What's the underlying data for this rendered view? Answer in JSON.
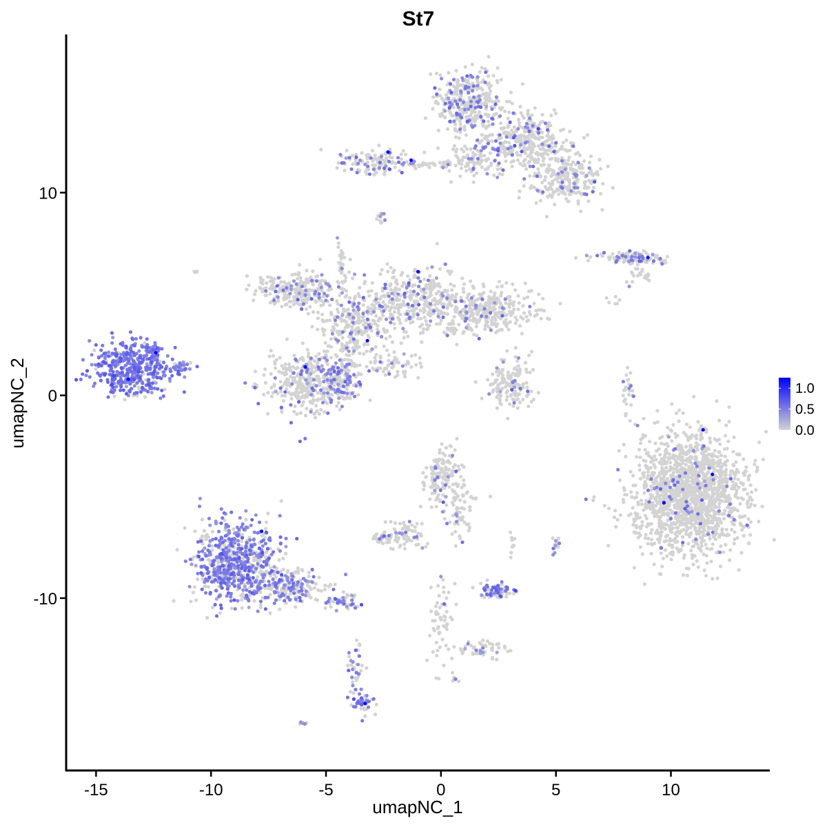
{
  "chart_data": {
    "type": "scatter",
    "title": "St7",
    "xlabel": "umapNC_1",
    "ylabel": "umapNC_2",
    "xlim": [
      -16.3,
      14.3
    ],
    "ylim": [
      -18.5,
      17.8
    ],
    "x_ticks": [
      -15,
      -10,
      -5,
      0,
      5,
      10
    ],
    "y_ticks": [
      -10,
      0,
      10
    ],
    "tick_labels_x": [
      "-15",
      "-10",
      "-5",
      "0",
      "5",
      "10"
    ],
    "tick_labels_y": [
      "-10",
      "0",
      "10"
    ],
    "grid": false,
    "legend": {
      "placement": "right",
      "type": "colorbar",
      "range": [
        0,
        1.25
      ],
      "ticks": [
        0.0,
        0.5,
        1.0
      ],
      "tick_labels": [
        "0.0",
        "0.5",
        "1.0"
      ],
      "low_color": "#d3d3d3",
      "high_color": "#0000ff"
    },
    "clusters": [
      {
        "center": [
          -13.5,
          1.3
        ],
        "spread": [
          1.1,
          0.9
        ],
        "n": 420,
        "expr_frac": 0.85,
        "expr_mean": 0.55
      },
      {
        "center": [
          -12.6,
          2.3
        ],
        "spread": [
          0.3,
          0.2
        ],
        "n": 25,
        "expr_frac": 0.8,
        "expr_mean": 0.5
      },
      {
        "center": [
          -11.3,
          1.4
        ],
        "spread": [
          0.5,
          0.15
        ],
        "n": 30,
        "expr_frac": 0.6,
        "expr_mean": 0.45
      },
      {
        "center": [
          -9.0,
          -8.2
        ],
        "spread": [
          1.2,
          1.4
        ],
        "n": 700,
        "expr_frac": 0.6,
        "expr_mean": 0.5
      },
      {
        "center": [
          -6.5,
          -9.4
        ],
        "spread": [
          1.0,
          0.5
        ],
        "n": 220,
        "expr_frac": 0.35,
        "expr_mean": 0.45
      },
      {
        "center": [
          -4.3,
          -10.2
        ],
        "spread": [
          0.5,
          0.3
        ],
        "n": 50,
        "expr_frac": 0.45,
        "expr_mean": 0.45
      },
      {
        "center": [
          -3.7,
          -13.5
        ],
        "spread": [
          0.25,
          1.0
        ],
        "n": 40,
        "expr_frac": 0.35,
        "expr_mean": 0.45
      },
      {
        "center": [
          -3.4,
          -15.2
        ],
        "spread": [
          0.3,
          0.35
        ],
        "n": 45,
        "expr_frac": 0.5,
        "expr_mean": 0.5
      },
      {
        "center": [
          -6.0,
          -16.2
        ],
        "spread": [
          0.1,
          0.08
        ],
        "n": 8,
        "expr_frac": 0.7,
        "expr_mean": 0.4
      },
      {
        "center": [
          -6.3,
          5.2
        ],
        "spread": [
          1.2,
          0.6
        ],
        "n": 260,
        "expr_frac": 0.1,
        "expr_mean": 0.45
      },
      {
        "center": [
          -3.8,
          3.5
        ],
        "spread": [
          1.0,
          1.2
        ],
        "n": 280,
        "expr_frac": 0.15,
        "expr_mean": 0.45
      },
      {
        "center": [
          -5.8,
          0.6
        ],
        "spread": [
          1.2,
          1.0
        ],
        "n": 380,
        "expr_frac": 0.12,
        "expr_mean": 0.45
      },
      {
        "center": [
          -4.3,
          0.8
        ],
        "spread": [
          0.6,
          0.7
        ],
        "n": 140,
        "expr_frac": 0.3,
        "expr_mean": 0.5
      },
      {
        "center": [
          -1.3,
          4.6
        ],
        "spread": [
          1.2,
          1.1
        ],
        "n": 320,
        "expr_frac": 0.12,
        "expr_mean": 0.45
      },
      {
        "center": [
          1.8,
          4.2
        ],
        "spread": [
          1.6,
          0.8
        ],
        "n": 380,
        "expr_frac": 0.08,
        "expr_mean": 0.45
      },
      {
        "center": [
          -2.0,
          1.5
        ],
        "spread": [
          0.8,
          0.5
        ],
        "n": 60,
        "expr_frac": 0.15,
        "expr_mean": 0.45
      },
      {
        "center": [
          -4.3,
          6.5
        ],
        "spread": [
          0.15,
          0.8
        ],
        "n": 30,
        "expr_frac": 0.1,
        "expr_mean": 0.4
      },
      {
        "center": [
          1.2,
          14.5
        ],
        "spread": [
          1.0,
          1.0
        ],
        "n": 380,
        "expr_frac": 0.2,
        "expr_mean": 0.5
      },
      {
        "center": [
          3.6,
          12.5
        ],
        "spread": [
          1.2,
          0.9
        ],
        "n": 330,
        "expr_frac": 0.15,
        "expr_mean": 0.5
      },
      {
        "center": [
          5.4,
          10.7
        ],
        "spread": [
          1.0,
          0.8
        ],
        "n": 250,
        "expr_frac": 0.12,
        "expr_mean": 0.45
      },
      {
        "center": [
          1.4,
          11.7
        ],
        "spread": [
          0.8,
          0.6
        ],
        "n": 90,
        "expr_frac": 0.15,
        "expr_mean": 0.45
      },
      {
        "center": [
          -2.9,
          11.5
        ],
        "spread": [
          0.9,
          0.4
        ],
        "n": 120,
        "expr_frac": 0.15,
        "expr_mean": 0.5
      },
      {
        "center": [
          -0.6,
          11.4
        ],
        "spread": [
          0.8,
          0.12
        ],
        "n": 40,
        "expr_frac": 0.15,
        "expr_mean": 0.45
      },
      {
        "center": [
          -2.6,
          8.8
        ],
        "spread": [
          0.12,
          0.25
        ],
        "n": 12,
        "expr_frac": 0.2,
        "expr_mean": 0.4
      },
      {
        "center": [
          8.3,
          6.8
        ],
        "spread": [
          1.0,
          0.2
        ],
        "n": 110,
        "expr_frac": 0.3,
        "expr_mean": 0.5
      },
      {
        "center": [
          8.7,
          5.9
        ],
        "spread": [
          0.4,
          0.3
        ],
        "n": 20,
        "expr_frac": 0.05,
        "expr_mean": 0.4
      },
      {
        "center": [
          3.0,
          0.6
        ],
        "spread": [
          0.7,
          0.8
        ],
        "n": 150,
        "expr_frac": 0.08,
        "expr_mean": 0.45
      },
      {
        "center": [
          8.1,
          0.3
        ],
        "spread": [
          0.2,
          0.7
        ],
        "n": 25,
        "expr_frac": 0.35,
        "expr_mean": 0.45
      },
      {
        "center": [
          10.8,
          -4.9
        ],
        "spread": [
          1.6,
          2.0
        ],
        "n": 1600,
        "expr_frac": 0.04,
        "expr_mean": 0.5
      },
      {
        "center": [
          0.0,
          -4.2
        ],
        "spread": [
          0.6,
          1.0
        ],
        "n": 150,
        "expr_frac": 0.1,
        "expr_mean": 0.45
      },
      {
        "center": [
          -1.6,
          -6.9
        ],
        "spread": [
          0.6,
          0.6
        ],
        "n": 70,
        "expr_frac": 0.12,
        "expr_mean": 0.45
      },
      {
        "center": [
          -2.5,
          -7.0
        ],
        "spread": [
          0.3,
          0.15
        ],
        "n": 35,
        "expr_frac": 0.2,
        "expr_mean": 0.45
      },
      {
        "center": [
          0.8,
          -5.8
        ],
        "spread": [
          0.3,
          0.8
        ],
        "n": 50,
        "expr_frac": 0.1,
        "expr_mean": 0.45
      },
      {
        "center": [
          2.4,
          -9.6
        ],
        "spread": [
          0.45,
          0.25
        ],
        "n": 90,
        "expr_frac": 0.45,
        "expr_mean": 0.5
      },
      {
        "center": [
          0.0,
          -11.4
        ],
        "spread": [
          0.4,
          1.3
        ],
        "n": 60,
        "expr_frac": 0.08,
        "expr_mean": 0.45
      },
      {
        "center": [
          1.8,
          -12.5
        ],
        "spread": [
          0.8,
          0.3
        ],
        "n": 50,
        "expr_frac": 0.15,
        "expr_mean": 0.45
      },
      {
        "center": [
          5.0,
          -7.4
        ],
        "spread": [
          0.15,
          0.3
        ],
        "n": 15,
        "expr_frac": 0.3,
        "expr_mean": 0.45
      },
      {
        "center": [
          3.1,
          -7.4
        ],
        "spread": [
          0.1,
          0.5
        ],
        "n": 10,
        "expr_frac": 0.1,
        "expr_mean": 0.4
      },
      {
        "center": [
          0.6,
          -14.0
        ],
        "spread": [
          0.08,
          0.08
        ],
        "n": 6,
        "expr_frac": 0.3,
        "expr_mean": 0.4
      },
      {
        "center": [
          -10.7,
          6.1
        ],
        "spread": [
          0.08,
          0.08
        ],
        "n": 4,
        "expr_frac": 0.0,
        "expr_mean": 0.4
      },
      {
        "center": [
          1.5,
          -5.0
        ],
        "spread": [
          0.5,
          0.1
        ],
        "n": 10,
        "expr_frac": 0.0,
        "expr_mean": 0.4
      },
      {
        "center": [
          7.6,
          4.7
        ],
        "spread": [
          0.3,
          0.2
        ],
        "n": 6,
        "expr_frac": 0.0,
        "expr_mean": 0.4
      }
    ],
    "highlight_points": [
      {
        "x": -2.3,
        "y": 12.0,
        "value": 1.2
      },
      {
        "x": -1.3,
        "y": 11.6,
        "value": 1.2
      },
      {
        "x": -1.0,
        "y": 6.1,
        "value": 1.2
      },
      {
        "x": -3.2,
        "y": 2.7,
        "value": 1.2
      },
      {
        "x": -5.9,
        "y": 1.4,
        "value": 1.2
      },
      {
        "x": -13.6,
        "y": 0.8,
        "value": 1.2
      },
      {
        "x": -12.4,
        "y": 2.1,
        "value": 1.2
      },
      {
        "x": -7.8,
        "y": -6.7,
        "value": 1.2
      },
      {
        "x": -3.3,
        "y": -15.2,
        "value": 1.2
      },
      {
        "x": 9.7,
        "y": -5.3,
        "value": 1.2
      },
      {
        "x": 11.4,
        "y": -1.7,
        "value": 1.2
      },
      {
        "x": 11.8,
        "y": -3.9,
        "value": 1.2
      },
      {
        "x": 9.0,
        "y": 6.8,
        "value": 1.1
      }
    ]
  }
}
